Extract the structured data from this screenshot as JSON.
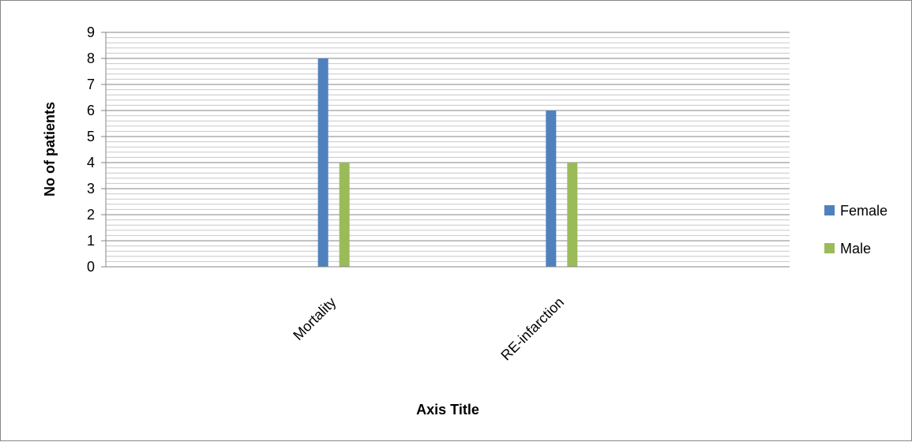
{
  "chart_data": {
    "type": "bar",
    "categories": [
      "Mortality",
      "RE-infarction"
    ],
    "series": [
      {
        "name": "Female",
        "values": [
          8,
          6
        ],
        "color": "#4F81BD"
      },
      {
        "name": "Male",
        "values": [
          4,
          4
        ],
        "color": "#9BBB59"
      }
    ],
    "xlabel": "Axis Title",
    "ylabel": "No of patients",
    "ylim": [
      0,
      9
    ],
    "yticks": [
      0,
      1,
      2,
      3,
      4,
      5,
      6,
      7,
      8,
      9
    ],
    "grid": true,
    "legend_position": "right"
  }
}
